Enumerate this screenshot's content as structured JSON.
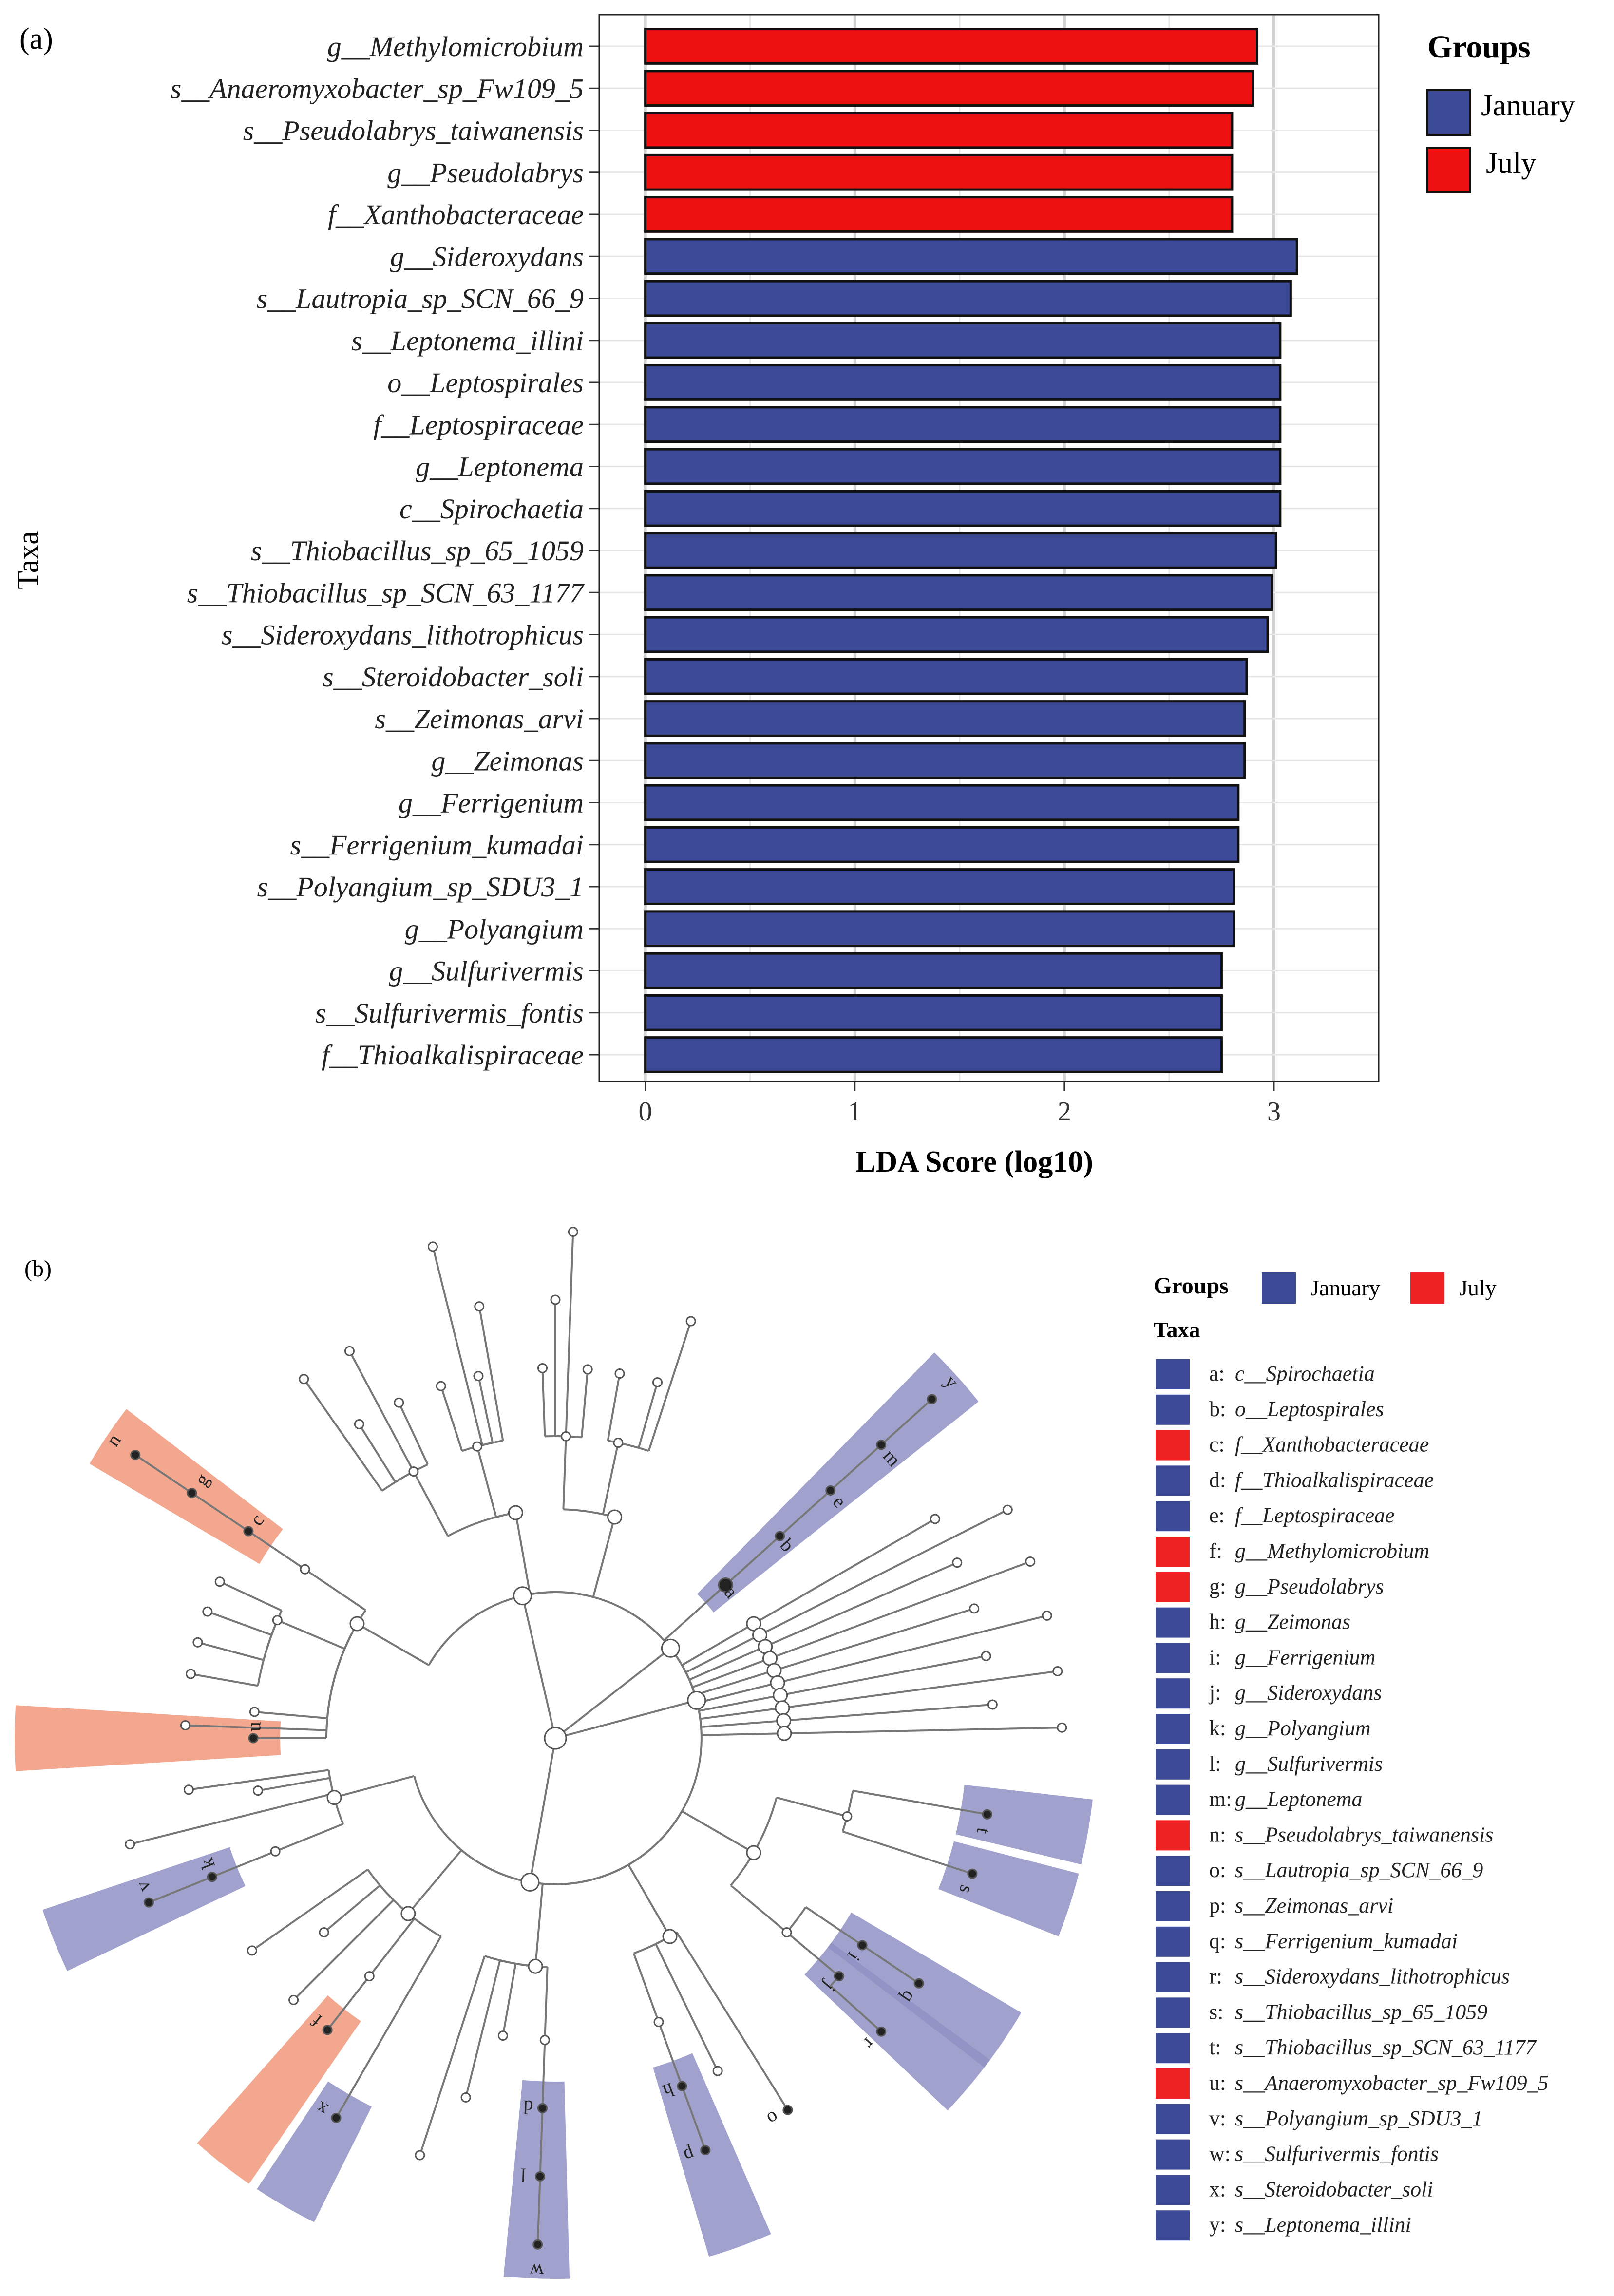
{
  "panel_a_label": "(a)",
  "panel_b_label": "(b)",
  "colors": {
    "january": "#3b4996",
    "july": "#ee1111",
    "july_clade": "#e8461f",
    "july_clade_light": "#f0987a",
    "january_clade": "#3b4996",
    "january_clade_light": "#8f92c4",
    "grid": "#d3d3d3",
    "tree": "#777777"
  },
  "chart_data": [
    {
      "type": "bar",
      "orientation": "horizontal",
      "xlabel": "LDA Score (log10)",
      "ylabel": "Taxa",
      "xlim": [
        -0.22,
        3.5
      ],
      "xticks": [
        0,
        1,
        2,
        3
      ],
      "grid": true,
      "legend_title": "Groups",
      "legend_position": "right",
      "legend": [
        {
          "name": "January",
          "color": "#3b4996"
        },
        {
          "name": "July",
          "color": "#ee1111"
        }
      ],
      "categories": [
        "g__Methylomicrobium",
        "s__Anaeromyxobacter_sp_Fw109_5",
        "s__Pseudolabrys_taiwanensis",
        "g__Pseudolabrys",
        "f__Xanthobacteraceae",
        "g__Sideroxydans",
        "s__Lautropia_sp_SCN_66_9",
        "s__Leptonema_illini",
        "o__Leptospirales",
        "f__Leptospiraceae",
        "g__Leptonema",
        "c__Spirochaetia",
        "s__Thiobacillus_sp_65_1059",
        "s__Thiobacillus_sp_SCN_63_1177",
        "s__Sideroxydans_lithotrophicus",
        "s__Steroidobacter_soli",
        "s__Zeimonas_arvi",
        "g__Zeimonas",
        "g__Ferrigenium",
        "s__Ferrigenium_kumadai",
        "s__Polyangium_sp_SDU3_1",
        "g__Polyangium",
        "g__Sulfurivermis",
        "s__Sulfurivermis_fontis",
        "f__Thioalkalispiraceae"
      ],
      "values": [
        2.92,
        2.9,
        2.8,
        2.8,
        2.8,
        3.11,
        3.08,
        3.03,
        3.03,
        3.03,
        3.03,
        3.03,
        3.01,
        2.99,
        2.97,
        2.87,
        2.86,
        2.86,
        2.83,
        2.83,
        2.81,
        2.81,
        2.75,
        2.75,
        2.75
      ],
      "groups": [
        "July",
        "July",
        "July",
        "July",
        "July",
        "January",
        "January",
        "January",
        "January",
        "January",
        "January",
        "January",
        "January",
        "January",
        "January",
        "January",
        "January",
        "January",
        "January",
        "January",
        "January",
        "January",
        "January",
        "January",
        "January"
      ]
    },
    {
      "type": "cladogram",
      "legend_groups_title": "Groups",
      "legend_taxa_title": "Taxa",
      "groups": [
        {
          "name": "January",
          "color": "#3b4996"
        },
        {
          "name": "July",
          "color": "#ee1111"
        }
      ],
      "taxa": [
        {
          "letter": "a",
          "prefix": "a: ",
          "name": "c__Spirochaetia",
          "group": "January"
        },
        {
          "letter": "b",
          "prefix": "b: ",
          "name": "o__Leptospirales",
          "group": "January"
        },
        {
          "letter": "c",
          "prefix": "c: ",
          "name": "f__Xanthobacteraceae",
          "group": "July"
        },
        {
          "letter": "d",
          "prefix": "d: ",
          "name": "f__Thioalkalispiraceae",
          "group": "January"
        },
        {
          "letter": "e",
          "prefix": "e: ",
          "name": "f__Leptospiraceae",
          "group": "January"
        },
        {
          "letter": "f",
          "prefix": "f: ",
          "name": "g__Methylomicrobium",
          "group": "July"
        },
        {
          "letter": "g",
          "prefix": "g: ",
          "name": "g__Pseudolabrys",
          "group": "July"
        },
        {
          "letter": "h",
          "prefix": "h: ",
          "name": "g__Zeimonas",
          "group": "January"
        },
        {
          "letter": "i",
          "prefix": "i: ",
          "name": "g__Ferrigenium",
          "group": "January"
        },
        {
          "letter": "j",
          "prefix": "j: ",
          "name": "g__Sideroxydans",
          "group": "January"
        },
        {
          "letter": "k",
          "prefix": "k: ",
          "name": "g__Polyangium",
          "group": "January"
        },
        {
          "letter": "l",
          "prefix": "l: ",
          "name": "g__Sulfurivermis",
          "group": "January"
        },
        {
          "letter": "m",
          "prefix": "m: ",
          "name": "g__Leptonema",
          "group": "January"
        },
        {
          "letter": "n",
          "prefix": "n: ",
          "name": "s__Pseudolabrys_taiwanensis",
          "group": "July"
        },
        {
          "letter": "o",
          "prefix": "o: ",
          "name": "s__Lautropia_sp_SCN_66_9",
          "group": "January"
        },
        {
          "letter": "p",
          "prefix": "p: ",
          "name": "s__Zeimonas_arvi",
          "group": "January"
        },
        {
          "letter": "q",
          "prefix": "q: ",
          "name": "s__Ferrigenium_kumadai",
          "group": "January"
        },
        {
          "letter": "r",
          "prefix": "r: ",
          "name": "s__Sideroxydans_lithotrophicus",
          "group": "January"
        },
        {
          "letter": "s",
          "prefix": "s: ",
          "name": "s__Thiobacillus_sp_65_1059",
          "group": "January"
        },
        {
          "letter": "t",
          "prefix": "t: ",
          "name": "s__Thiobacillus_sp_SCN_63_1177",
          "group": "January"
        },
        {
          "letter": "u",
          "prefix": "u: ",
          "name": "s__Anaeromyxobacter_sp_Fw109_5",
          "group": "July"
        },
        {
          "letter": "v",
          "prefix": "v: ",
          "name": "s__Polyangium_sp_SDU3_1",
          "group": "January"
        },
        {
          "letter": "w",
          "prefix": "w: ",
          "name": "s__Sulfurivermis_fontis",
          "group": "January"
        },
        {
          "letter": "x",
          "prefix": "x: ",
          "name": "s__Steroidobacter_soli",
          "group": "January"
        },
        {
          "letter": "y",
          "prefix": "y: ",
          "name": "s__Leptonema_illini",
          "group": "January"
        }
      ]
    }
  ]
}
